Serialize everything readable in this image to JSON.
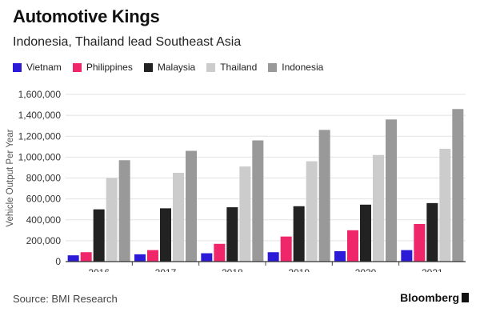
{
  "header": {
    "title": "Automotive Kings",
    "subtitle": "Indonesia, Thailand lead Southeast Asia"
  },
  "footer": {
    "source": "Source: BMI Research",
    "brand": "Bloomberg"
  },
  "chart_data": {
    "type": "bar",
    "title": "Automotive Kings",
    "subtitle": "Indonesia, Thailand lead Southeast Asia",
    "xlabel": "",
    "ylabel": "Vehicle Output Per Year",
    "categories": [
      "2016",
      "2017",
      "2018",
      "2019",
      "2020",
      "2021"
    ],
    "ylim": [
      0,
      1600000
    ],
    "yticks": [
      0,
      200000,
      400000,
      600000,
      800000,
      1000000,
      1200000,
      1400000,
      1600000
    ],
    "ytick_labels": [
      "0",
      "200,000",
      "400,000",
      "600,000",
      "800,000",
      "1,000,000",
      "1,200,000",
      "1,400,000",
      "1,600,000"
    ],
    "legend_position": "top-left",
    "series": [
      {
        "name": "Vietnam",
        "color": "#2b1bd6",
        "values": [
          60000,
          70000,
          80000,
          90000,
          100000,
          110000
        ]
      },
      {
        "name": "Philippines",
        "color": "#f0266b",
        "values": [
          90000,
          110000,
          170000,
          240000,
          300000,
          360000
        ]
      },
      {
        "name": "Malaysia",
        "color": "#222222",
        "values": [
          500000,
          510000,
          520000,
          530000,
          545000,
          560000
        ]
      },
      {
        "name": "Thailand",
        "color": "#cccccc",
        "values": [
          800000,
          850000,
          910000,
          960000,
          1020000,
          1080000
        ]
      },
      {
        "name": "Indonesia",
        "color": "#999999",
        "values": [
          970000,
          1060000,
          1160000,
          1260000,
          1360000,
          1460000
        ]
      }
    ]
  }
}
